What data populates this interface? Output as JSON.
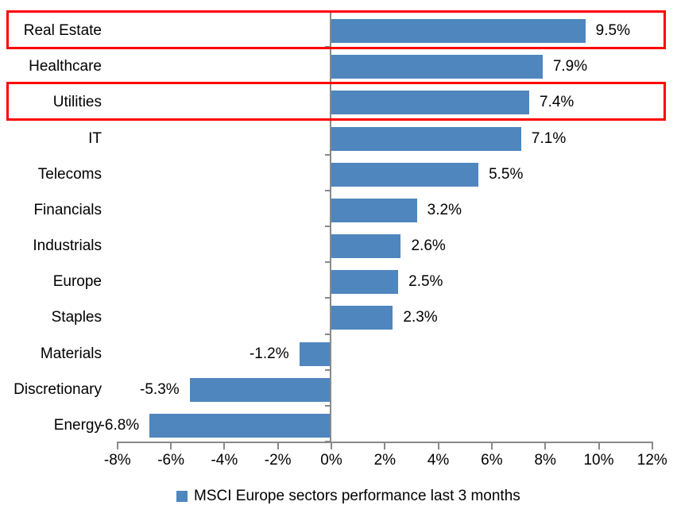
{
  "chart_data": {
    "type": "bar",
    "orientation": "horizontal",
    "title": "",
    "categories": [
      "Real Estate",
      "Healthcare",
      "Utilities",
      "IT",
      "Telecoms",
      "Financials",
      "Industrials",
      "Europe",
      "Staples",
      "Materials",
      "Discretionary",
      "Energy"
    ],
    "values": [
      9.5,
      7.9,
      7.4,
      7.1,
      5.5,
      3.2,
      2.6,
      2.5,
      2.3,
      -1.2,
      -5.3,
      -6.8
    ],
    "value_labels": [
      "9.5%",
      "7.9%",
      "7.4%",
      "7.1%",
      "5.5%",
      "3.2%",
      "2.6%",
      "2.5%",
      "2.3%",
      "-1.2%",
      "-5.3%",
      "-6.8%"
    ],
    "x_axis": {
      "min": -8,
      "max": 12,
      "step": 2,
      "tick_labels": [
        "-8%",
        "-6%",
        "-4%",
        "-2%",
        "0%",
        "2%",
        "4%",
        "6%",
        "8%",
        "10%",
        "12%"
      ]
    },
    "legend": "MSCI Europe sectors performance last 3 months",
    "legend_position": "bottom",
    "grid": false,
    "highlighted_categories": [
      "Real Estate",
      "Utilities"
    ],
    "colors": {
      "bar": "#4f86be",
      "axis": "#898989",
      "text": "#000000",
      "highlight_border": "#fe0000"
    }
  }
}
